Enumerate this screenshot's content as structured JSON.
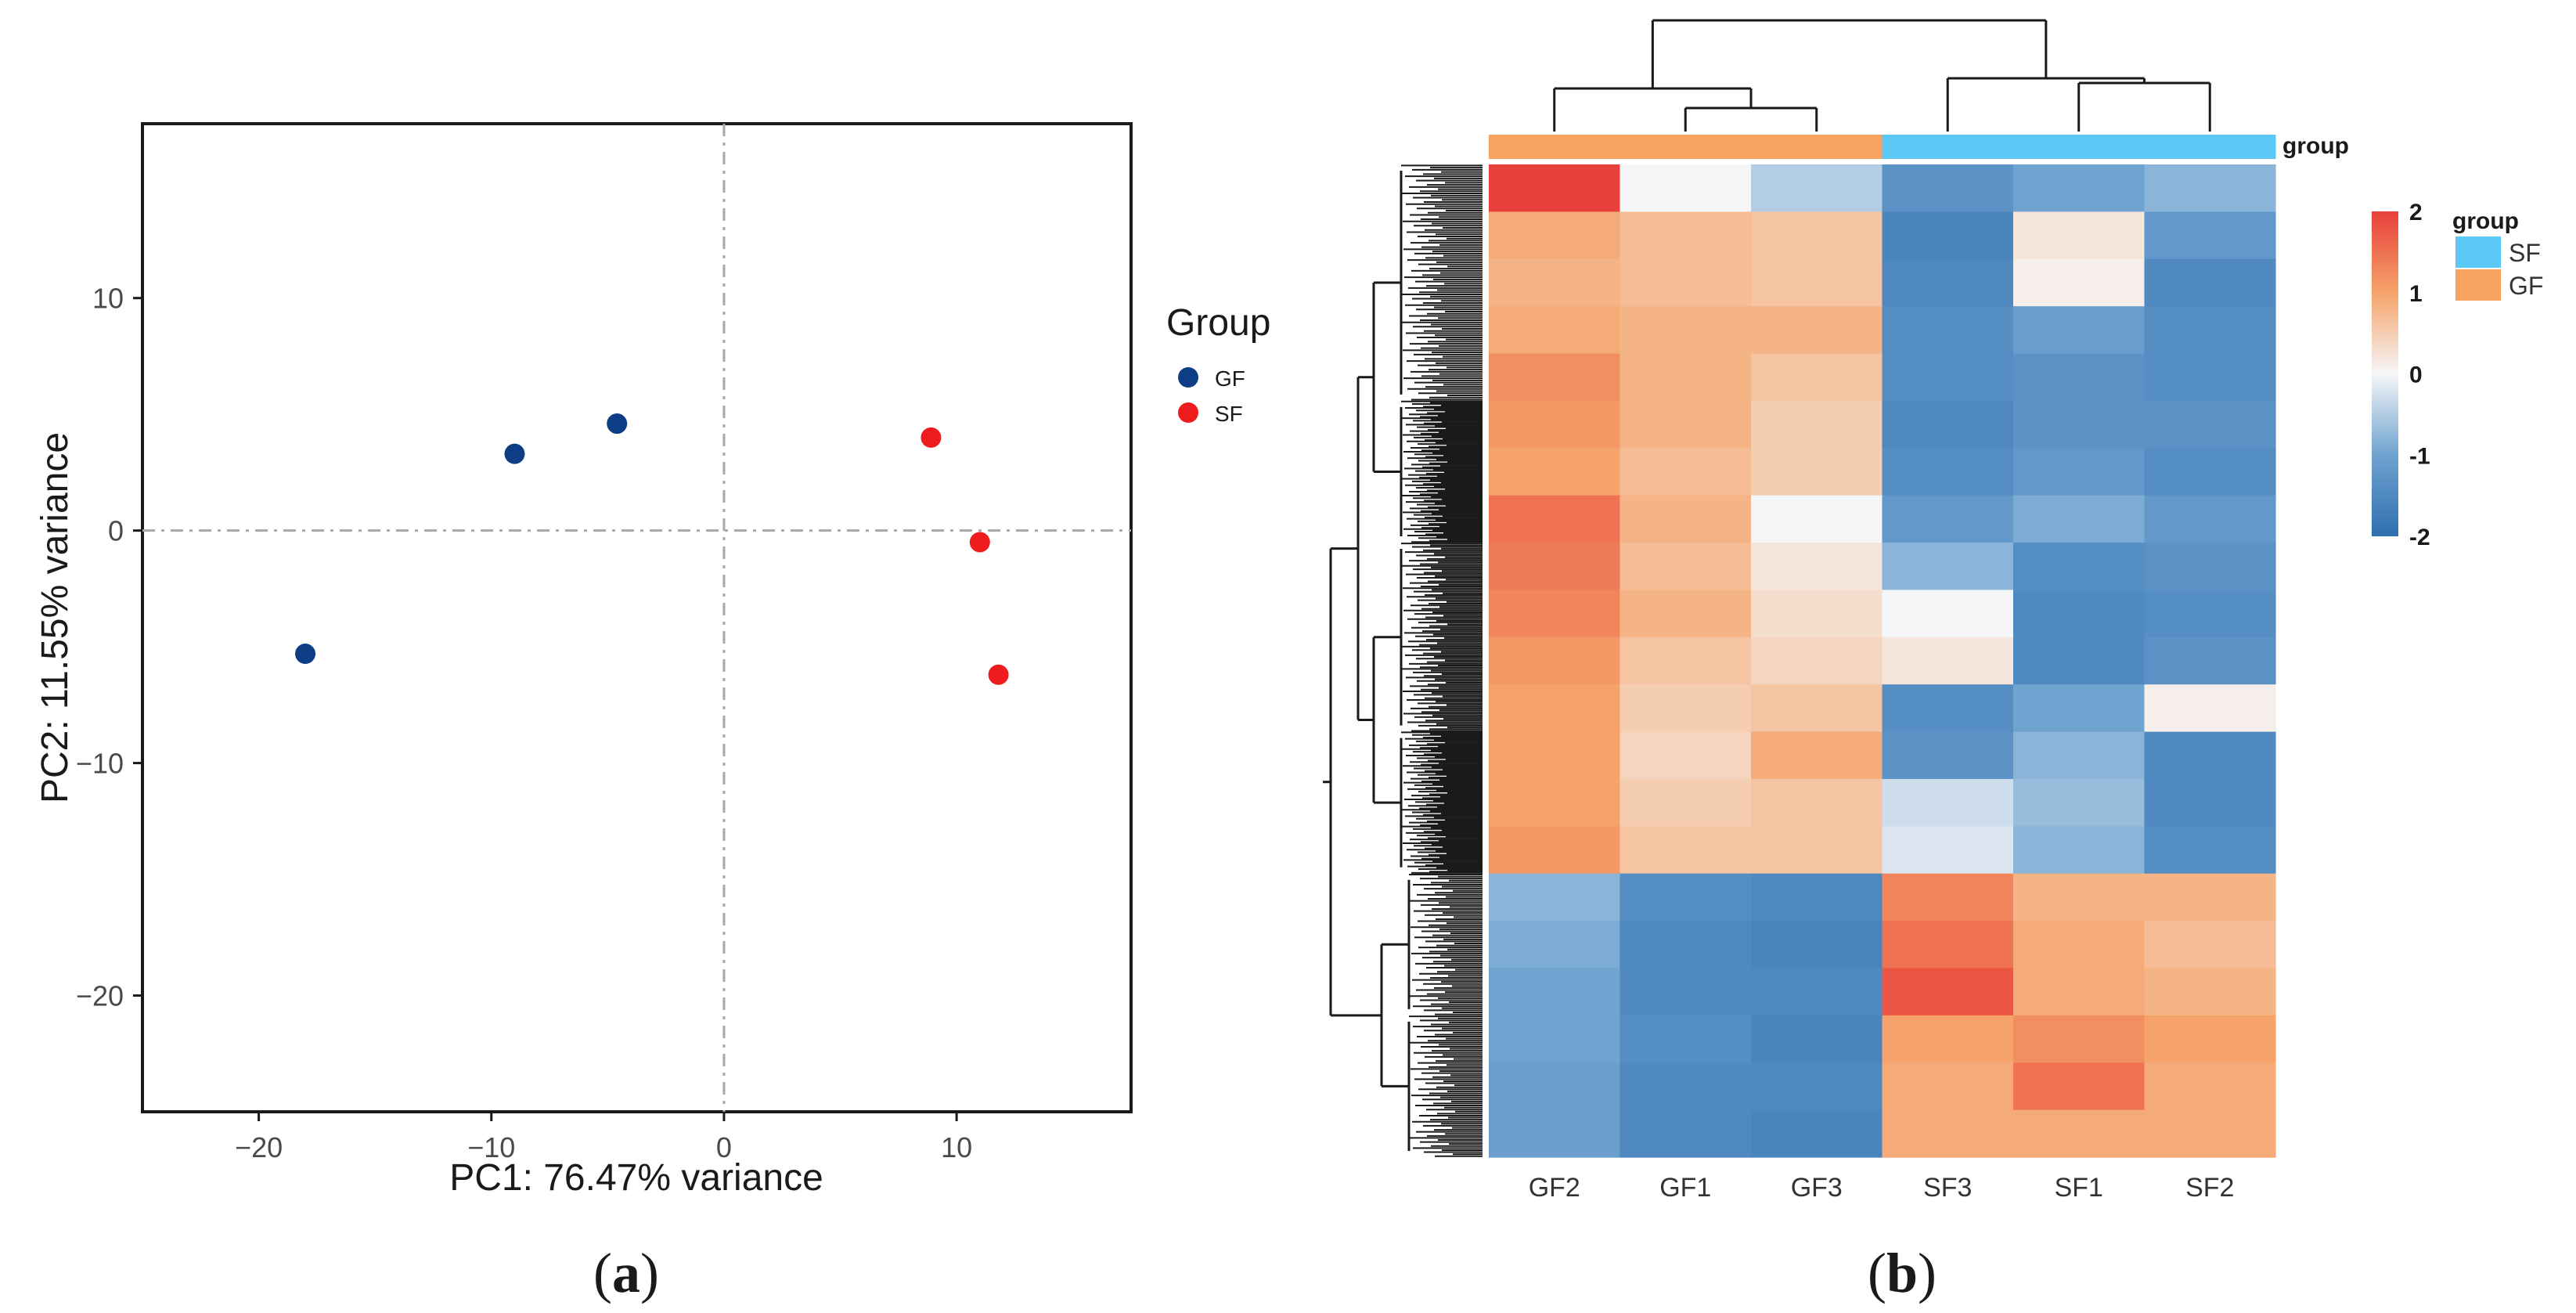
{
  "chart_data": [
    {
      "type": "scatter",
      "panel_label": "(a)",
      "panel_label_parts": [
        "(",
        "a",
        ")"
      ],
      "title": "",
      "xlabel": "PC1: 76.47% variance",
      "ylabel": "PC2: 11.55% variance",
      "xlim": [
        -25,
        17.5
      ],
      "ylim": [
        -25,
        17.5
      ],
      "x_ticks": [
        -20,
        -10,
        0,
        10
      ],
      "y_ticks": [
        -20,
        -10,
        0,
        10
      ],
      "x_tick_labels": [
        "−20",
        "−10",
        "0",
        "10"
      ],
      "y_tick_labels": [
        "−20",
        "−10",
        "0",
        "10"
      ],
      "reference_lines": {
        "x": 0,
        "y": 0,
        "style": "dashdot"
      },
      "grid": false,
      "legend": {
        "title": "Group",
        "position": "right"
      },
      "series": [
        {
          "name": "GF",
          "color": "#0d3d84",
          "points": [
            {
              "x": -18,
              "y": -5.3
            },
            {
              "x": -9,
              "y": 3.3
            },
            {
              "x": -4.6,
              "y": 4.6
            }
          ]
        },
        {
          "name": "SF",
          "color": "#ee1c1c",
          "points": [
            {
              "x": 8.9,
              "y": 4.0
            },
            {
              "x": 11.0,
              "y": -0.5
            },
            {
              "x": 11.8,
              "y": -6.2
            }
          ]
        }
      ]
    },
    {
      "type": "heatmap",
      "panel_label": "(b)",
      "panel_label_parts": [
        "(",
        "b",
        ")"
      ],
      "columns": [
        "GF2",
        "GF1",
        "GF3",
        "SF3",
        "SF1",
        "SF2"
      ],
      "column_groups": [
        "GF",
        "GF",
        "GF",
        "SF",
        "SF",
        "SF"
      ],
      "annotation_label": "group",
      "color_scale": {
        "min": -2,
        "max": 2,
        "ticks": [
          2,
          1,
          0,
          -1,
          -2
        ],
        "tick_labels": [
          "2",
          "1",
          "0",
          "-1",
          "-2"
        ],
        "low": "#2f6fb0",
        "mid": "#f5f6f8",
        "high": "#e8413b"
      },
      "group_legend": {
        "title": "group",
        "entries": [
          {
            "name": "SF",
            "color": "#5bc8f5"
          },
          {
            "name": "GF",
            "color": "#f7a25e"
          }
        ]
      },
      "row_blocks": [
        {
          "values": [
            2.0,
            0.0,
            -0.5,
            -1.3,
            -1.0,
            -0.8
          ]
        },
        {
          "values": [
            0.9,
            0.7,
            0.6,
            -1.6,
            0.2,
            -1.2
          ]
        },
        {
          "values": [
            0.8,
            0.7,
            0.6,
            -1.5,
            0.1,
            -1.5
          ]
        },
        {
          "values": [
            0.9,
            0.8,
            0.8,
            -1.4,
            -1.1,
            -1.4
          ]
        },
        {
          "values": [
            1.2,
            0.8,
            0.6,
            -1.4,
            -1.3,
            -1.4
          ]
        },
        {
          "values": [
            1.1,
            0.8,
            0.5,
            -1.5,
            -1.3,
            -1.3
          ]
        },
        {
          "values": [
            1.0,
            0.7,
            0.5,
            -1.4,
            -1.2,
            -1.4
          ]
        },
        {
          "values": [
            1.5,
            0.8,
            0.0,
            -1.2,
            -0.9,
            -1.2
          ]
        },
        {
          "values": [
            1.4,
            0.7,
            0.2,
            -0.8,
            -1.4,
            -1.3
          ]
        },
        {
          "values": [
            1.3,
            0.8,
            0.3,
            0.0,
            -1.5,
            -1.4
          ]
        },
        {
          "values": [
            1.1,
            0.6,
            0.4,
            0.2,
            -1.5,
            -1.3
          ]
        },
        {
          "values": [
            1.0,
            0.5,
            0.6,
            -1.4,
            -1.0,
            0.1
          ]
        },
        {
          "values": [
            1.0,
            0.4,
            0.9,
            -1.3,
            -0.8,
            -1.5
          ]
        },
        {
          "values": [
            1.0,
            0.5,
            0.6,
            -0.3,
            -0.7,
            -1.5
          ]
        },
        {
          "values": [
            1.1,
            0.6,
            0.6,
            -0.2,
            -0.8,
            -1.4
          ]
        },
        {
          "values": [
            -0.8,
            -1.4,
            -1.5,
            1.3,
            0.8,
            0.8
          ]
        },
        {
          "values": [
            -0.9,
            -1.5,
            -1.6,
            1.5,
            0.9,
            0.7
          ]
        },
        {
          "values": [
            -1.0,
            -1.5,
            -1.5,
            1.8,
            0.9,
            0.8
          ]
        },
        {
          "values": [
            -1.0,
            -1.4,
            -1.6,
            1.0,
            1.2,
            1.0
          ]
        },
        {
          "values": [
            -1.1,
            -1.5,
            -1.5,
            0.9,
            1.5,
            0.9
          ]
        },
        {
          "values": [
            -1.1,
            -1.5,
            -1.6,
            0.9,
            0.9,
            0.9
          ]
        }
      ]
    }
  ]
}
